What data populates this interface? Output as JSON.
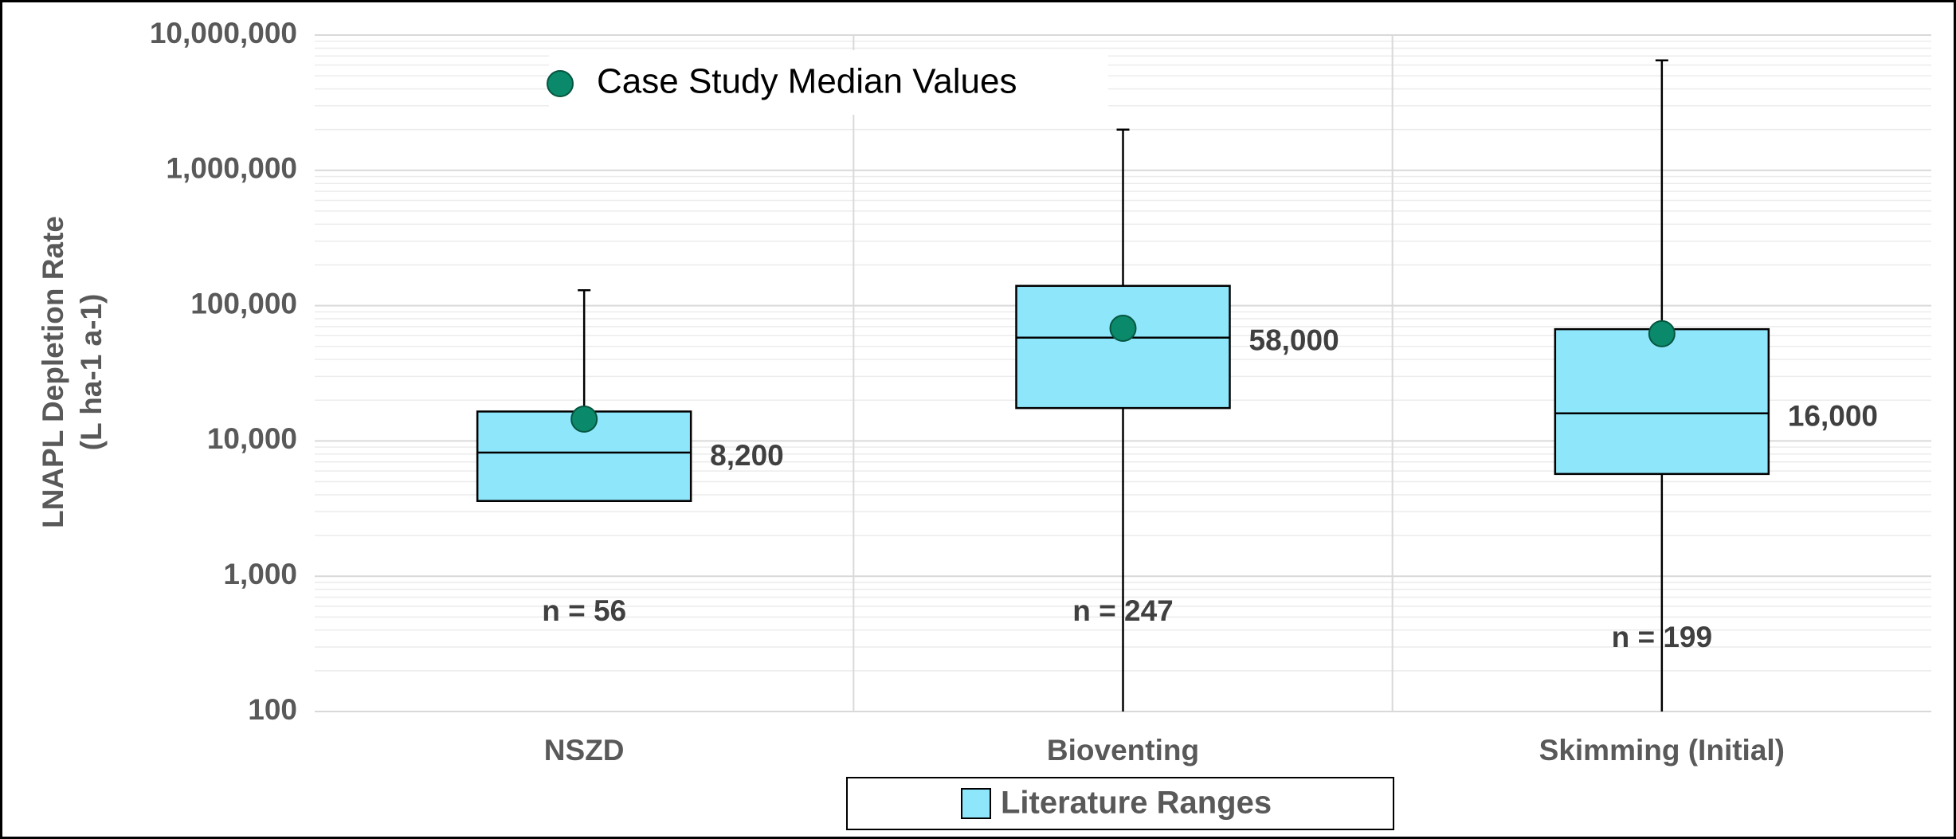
{
  "chart_data": {
    "type": "box",
    "ylabel": [
      "LNAPL Depletion Rate",
      "(L ha-1 a-1)"
    ],
    "categories": [
      "NSZD",
      "Bioventing",
      "Skimming (Initial)"
    ],
    "series": [
      {
        "name": "Literature Ranges",
        "color": "#8ee6fb",
        "whisker_low": [
          null,
          100,
          100
        ],
        "q1": [
          3600,
          17500,
          5700
        ],
        "median": [
          8200,
          58000,
          16000
        ],
        "median_labels": [
          "8,200",
          "58,000",
          "16,000"
        ],
        "q3": [
          16500,
          140000,
          67000
        ],
        "whisker_high": [
          130000,
          2000000,
          6500000
        ]
      },
      {
        "name": "Case Study Median Values",
        "color": "#0a8a6b",
        "type": "scatter",
        "values": [
          14500,
          68000,
          62000
        ]
      }
    ],
    "annotations": [
      "n = 56",
      "n = 247",
      "n = 199"
    ],
    "log_scale": true,
    "ylim": [
      100,
      10000000
    ],
    "yticks": [
      100,
      {
        "value": 1000,
        "label": "1,000"
      },
      {
        "value": 10000,
        "label": "10,000"
      },
      {
        "value": 100000,
        "label": "100,000"
      },
      {
        "value": 1000000,
        "label": "1,000,000"
      },
      {
        "value": 10000000,
        "label": "10,000,000"
      }
    ],
    "grid": true,
    "minor_grid": true
  }
}
